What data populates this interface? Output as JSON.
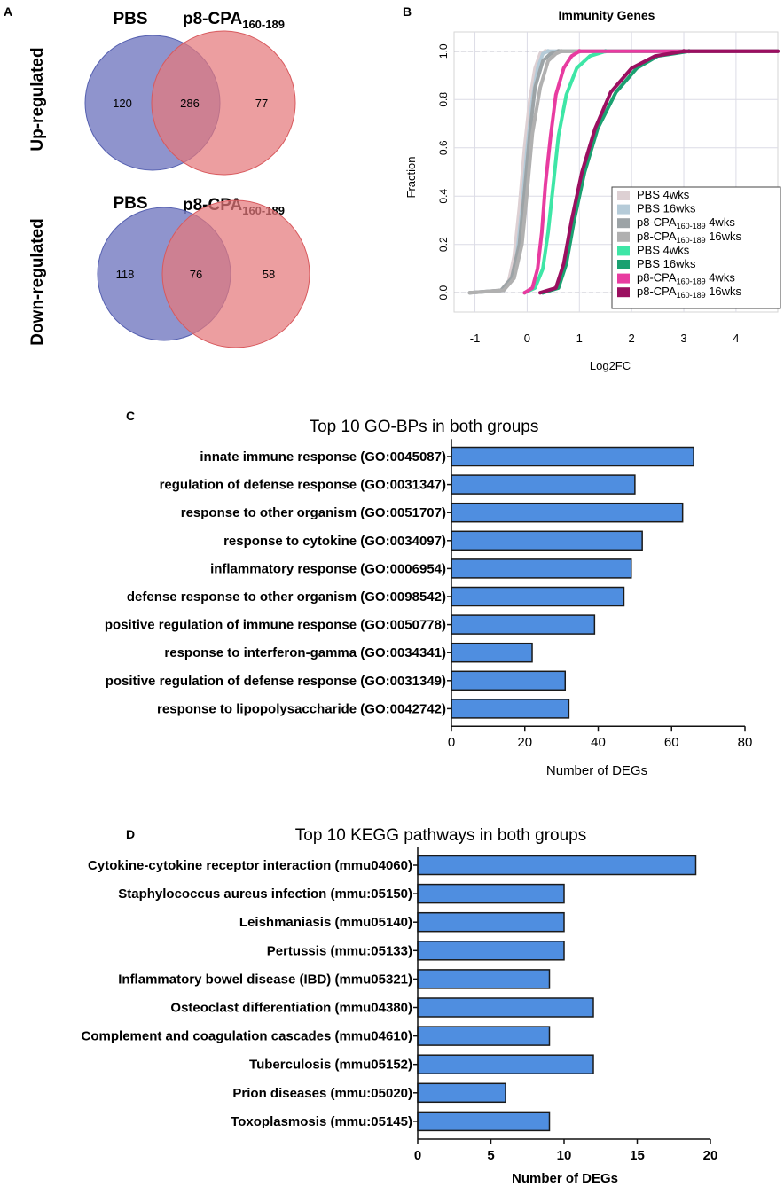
{
  "panel_labels": {
    "a": "A",
    "b": "B",
    "c": "C",
    "d": "D"
  },
  "colors": {
    "venn_left": "#7b81c4",
    "venn_left_stroke": "#5560b0",
    "venn_right": "#e5787b",
    "venn_right_stroke": "#d8595d",
    "bar_fill": "#4f8ee0",
    "bar_stroke": "#1a1a1a"
  },
  "venn": {
    "left_label": "PBS",
    "right_label_main": "p8-CPA",
    "right_label_sub": "160-189",
    "up": {
      "row_label": "Up-regulated",
      "left_only": "120",
      "overlap": "286",
      "right_only": "77"
    },
    "down": {
      "row_label": "Down-regulated",
      "left_only": "118",
      "overlap": "76",
      "right_only": "58"
    }
  },
  "chart_data": [
    {
      "id": "ecdf",
      "type": "line",
      "title": "Immunity Genes",
      "xlabel": "Log2FC",
      "ylabel": "Fraction",
      "xlim": [
        -1.4,
        4.8
      ],
      "ylim": [
        -0.08,
        1.08
      ],
      "xticks": [
        "-1",
        "0",
        "1",
        "2",
        "3",
        "4"
      ],
      "yticks": [
        "0.0",
        "0.2",
        "0.4",
        "0.6",
        "0.8",
        "1.0"
      ],
      "xtick_values": [
        -1,
        0,
        1,
        2,
        3,
        4
      ],
      "ytick_values": [
        0,
        0.2,
        0.4,
        0.6,
        0.8,
        1.0
      ],
      "legend_position": "bottom-right",
      "series": [
        {
          "name": "PBS 4wks",
          "name_main": "PBS 4wks",
          "name_sub": "",
          "name_tail": "",
          "color": "#ddd0d3",
          "x": [
            -1.1,
            -0.5,
            -0.35,
            -0.25,
            -0.15,
            -0.05,
            0.05,
            0.15,
            0.25,
            0.35
          ],
          "y": [
            0,
            0.01,
            0.05,
            0.15,
            0.35,
            0.6,
            0.8,
            0.93,
            0.99,
            1.0
          ]
        },
        {
          "name": "PBS 16wks",
          "name_main": "PBS 16wks",
          "name_sub": "",
          "name_tail": "",
          "color": "#b5cbd8",
          "x": [
            -1.1,
            -0.45,
            -0.3,
            -0.2,
            -0.1,
            0.0,
            0.1,
            0.2,
            0.3,
            0.4
          ],
          "y": [
            0,
            0.01,
            0.05,
            0.15,
            0.35,
            0.6,
            0.8,
            0.93,
            0.99,
            1.0
          ]
        },
        {
          "name": "p8-CPA160-189 4wks",
          "name_main": "p8-CPA",
          "name_sub": "160-189",
          "name_tail": " 4wks",
          "color": "#9ca3a6",
          "x": [
            -1.1,
            -0.5,
            -0.3,
            -0.15,
            -0.05,
            0.05,
            0.15,
            0.3,
            0.45,
            0.6
          ],
          "y": [
            0,
            0.01,
            0.06,
            0.2,
            0.42,
            0.66,
            0.85,
            0.96,
            0.99,
            1.0
          ]
        },
        {
          "name": "p8-CPA160-189 16wks",
          "name_main": "p8-CPA",
          "name_sub": "160-189",
          "name_tail": " 16wks",
          "color": "#b0b0b0",
          "x": [
            -1.1,
            -0.45,
            -0.25,
            -0.1,
            0.0,
            0.1,
            0.25,
            0.4,
            0.55,
            0.65
          ],
          "y": [
            0,
            0.01,
            0.06,
            0.2,
            0.42,
            0.66,
            0.85,
            0.96,
            0.99,
            1.0
          ]
        },
        {
          "name": "PBS 4wks",
          "name_main": "PBS 4wks",
          "name_sub": "",
          "name_tail": "",
          "color": "#3ee6a6",
          "x": [
            -0.05,
            0.15,
            0.3,
            0.4,
            0.5,
            0.6,
            0.75,
            0.95,
            1.2,
            1.5
          ],
          "y": [
            0,
            0.02,
            0.1,
            0.25,
            0.45,
            0.65,
            0.82,
            0.93,
            0.98,
            1.0
          ]
        },
        {
          "name": "PBS 16wks",
          "name_main": "PBS 16wks",
          "name_sub": "",
          "name_tail": "",
          "color": "#1aa070",
          "x": [
            0.3,
            0.6,
            0.75,
            0.9,
            1.1,
            1.35,
            1.7,
            2.1,
            2.5,
            3.1
          ],
          "y": [
            0,
            0.02,
            0.12,
            0.3,
            0.5,
            0.68,
            0.83,
            0.93,
            0.98,
            1.0
          ]
        },
        {
          "name": "p8-CPA160-189 4wks",
          "name_main": "p8-CPA",
          "name_sub": "160-189",
          "name_tail": " 4wks",
          "color": "#e83ba0",
          "x": [
            -0.05,
            0.1,
            0.2,
            0.28,
            0.35,
            0.45,
            0.55,
            0.7,
            0.85,
            1.0
          ],
          "y": [
            0,
            0.02,
            0.1,
            0.25,
            0.45,
            0.65,
            0.82,
            0.93,
            0.98,
            1.0
          ]
        },
        {
          "name": "p8-CPA160-189 16wks",
          "name_main": "p8-CPA",
          "name_sub": "160-189",
          "name_tail": " 16wks",
          "color": "#9b0f60",
          "x": [
            0.25,
            0.55,
            0.7,
            0.85,
            1.05,
            1.3,
            1.6,
            2.0,
            2.45,
            3.0
          ],
          "y": [
            0,
            0.02,
            0.12,
            0.3,
            0.5,
            0.68,
            0.83,
            0.93,
            0.98,
            1.0
          ]
        }
      ]
    },
    {
      "id": "go",
      "type": "bar",
      "orientation": "horizontal",
      "title": "Top 10 GO-BPs in both groups",
      "xlabel": "Number of DEGs",
      "ylabel": "",
      "xlim": [
        0,
        80
      ],
      "xticks": [
        "0",
        "20",
        "40",
        "60",
        "80"
      ],
      "xtick_values": [
        0,
        20,
        40,
        60,
        80
      ],
      "categories": [
        "innate immune response (GO:0045087)",
        "regulation of defense response (GO:0031347)",
        "response to other organism (GO:0051707)",
        "response to cytokine (GO:0034097)",
        "inflammatory response (GO:0006954)",
        "defense response to other organism (GO:0098542)",
        "positive regulation of immune response (GO:0050778)",
        "response to interferon-gamma (GO:0034341)",
        "positive regulation of defense response (GO:0031349)",
        "response to lipopolysaccharide (GO:0042742)"
      ],
      "values": [
        66,
        50,
        63,
        52,
        49,
        47,
        39,
        22,
        31,
        32
      ]
    },
    {
      "id": "kegg",
      "type": "bar",
      "orientation": "horizontal",
      "title": "Top 10 KEGG pathways in both groups",
      "xlabel": "Number of DEGs",
      "ylabel": "",
      "xlim": [
        0,
        20
      ],
      "xticks": [
        "0",
        "5",
        "10",
        "15",
        "20"
      ],
      "xtick_values": [
        0,
        5,
        10,
        15,
        20
      ],
      "categories": [
        "Cytokine-cytokine receptor interaction (mmu04060)",
        "Staphylococcus aureus infection (mmu:05150)",
        "Leishmaniasis (mmu05140)",
        "Pertussis (mmu:05133)",
        "Inflammatory bowel disease (IBD) (mmu05321)",
        "Osteoclast differentiation (mmu04380)",
        "Complement and coagulation cascades (mmu04610)",
        "Tuberculosis (mmu05152)",
        "Prion diseases (mmu:05020)",
        "Toxoplasmosis (mmu:05145)"
      ],
      "values": [
        19,
        10,
        10,
        10,
        9,
        12,
        9,
        12,
        6,
        9
      ]
    }
  ]
}
